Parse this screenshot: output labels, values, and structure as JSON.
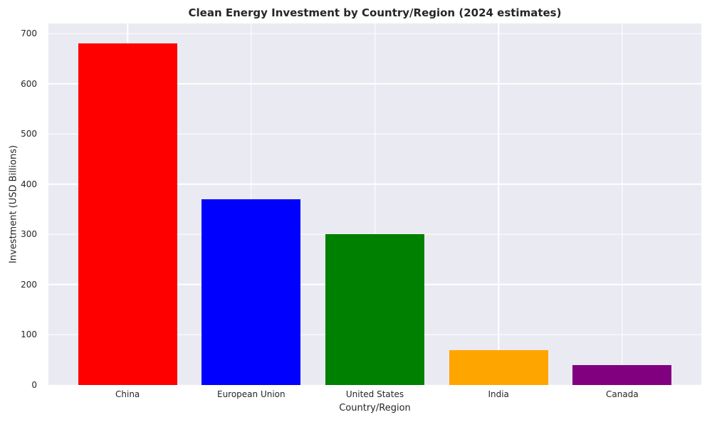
{
  "chart_data": {
    "type": "bar",
    "title": "Clean Energy Investment by Country/Region (2024 estimates)",
    "xlabel": "Country/Region",
    "ylabel": "Investment (USD Billions)",
    "categories": [
      "China",
      "European Union",
      "United States",
      "India",
      "Canada"
    ],
    "values": [
      680,
      370,
      300,
      70,
      40
    ],
    "bar_colors": [
      "#ff0000",
      "#0000ff",
      "#008000",
      "#ffa500",
      "#800080"
    ],
    "ylim": [
      0,
      720
    ],
    "yticks": [
      0,
      100,
      200,
      300,
      400,
      500,
      600,
      700
    ],
    "grid": "on",
    "legend": "none",
    "plot_background": "#eaeaf2",
    "grid_color": "#ffffff",
    "text_color": "#262626"
  }
}
